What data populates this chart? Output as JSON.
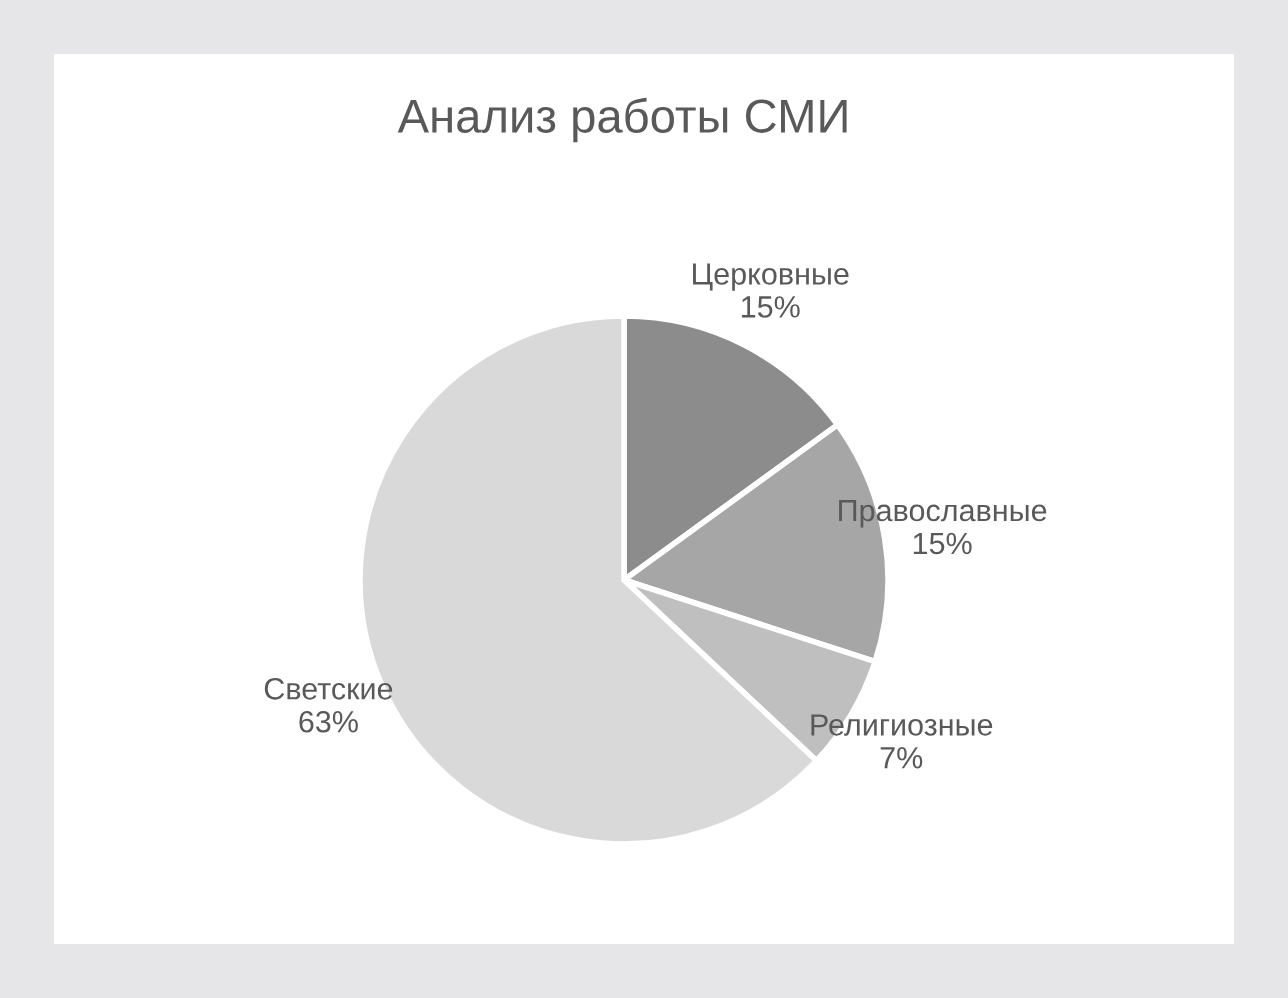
{
  "chart_data": {
    "type": "pie",
    "title": "Анализ работы СМИ",
    "categories": [
      "Церковные",
      "Православные",
      "Религиозные",
      "Светские"
    ],
    "values": [
      15,
      15,
      7,
      63
    ],
    "value_labels": [
      "15%",
      "15%",
      "7%",
      "63%"
    ],
    "colors": [
      "#8c8c8c",
      "#a6a6a6",
      "#bfbfbf",
      "#d9d9d9"
    ],
    "legend": false
  }
}
